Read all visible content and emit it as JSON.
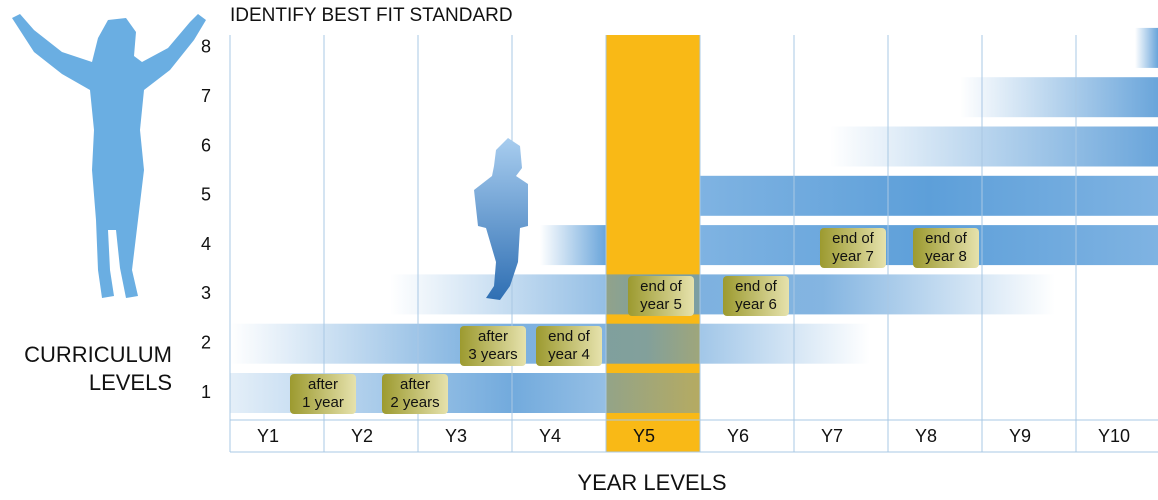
{
  "title": "IDENTIFY BEST FIT STANDARD",
  "y_axis_label": [
    "CURRICULUM",
    "LEVELS"
  ],
  "x_axis_label": "YEAR LEVELS",
  "levels": [
    "1",
    "2",
    "3",
    "4",
    "5",
    "6",
    "7",
    "8"
  ],
  "years": [
    "Y1",
    "Y2",
    "Y3",
    "Y4",
    "Y5",
    "Y6",
    "Y7",
    "Y8",
    "Y9",
    "Y10"
  ],
  "badges": [
    [
      "after",
      "1 year"
    ],
    [
      "after",
      "2 years"
    ],
    [
      "after",
      "3 years"
    ],
    [
      "end of",
      "year 4"
    ],
    [
      "end of",
      "year 5"
    ],
    [
      "end of",
      "year 6"
    ],
    [
      "end of",
      "year 7"
    ],
    [
      "end of",
      "year 8"
    ]
  ]
}
